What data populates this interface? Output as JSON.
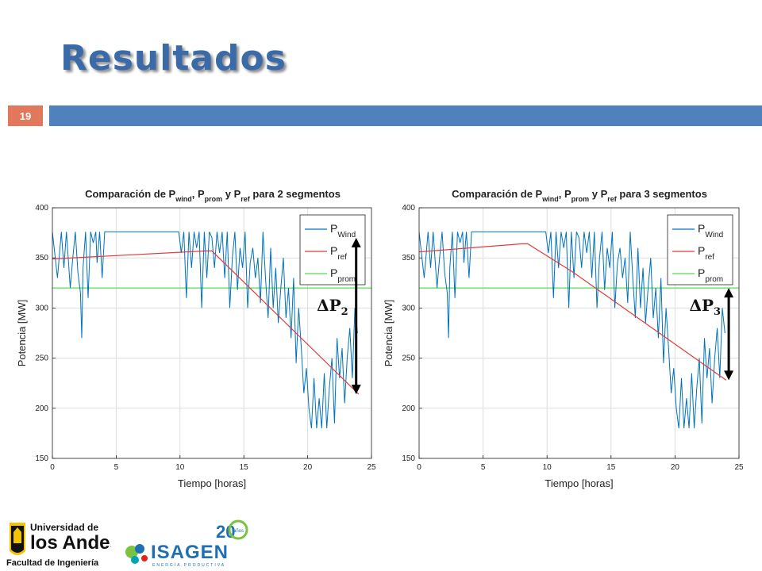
{
  "slide": {
    "title": "Resultados",
    "number": "19",
    "accent": "#4f81bd",
    "number_bg": "#e1785b"
  },
  "chart_data": [
    {
      "type": "line",
      "title": "Comparación de P_wind, P_prom y P_ref para 2 segmentos",
      "title_parts": {
        "a": "Comparación de P",
        "s1": "wind",
        "b": ", P",
        "s2": "prom",
        "c": " y P",
        "s3": "ref",
        "d": " para 2 segmentos"
      },
      "xlabel": "Tiempo [horas]",
      "ylabel": "Potencia [MW]",
      "xlim": [
        0,
        25
      ],
      "ylim": [
        150,
        400
      ],
      "xticks": [
        0,
        5,
        10,
        15,
        20,
        25
      ],
      "yticks": [
        150,
        200,
        250,
        300,
        350,
        400
      ],
      "grid": true,
      "legend_position": "top-right",
      "legend": [
        {
          "base": "P",
          "sub": "Wind",
          "color": "#0072bd"
        },
        {
          "base": "P",
          "sub": "ref",
          "color": "#e03c3c"
        },
        {
          "base": "P",
          "sub": "prom",
          "color": "#55dd55"
        }
      ],
      "annotation": {
        "label": "ΔP",
        "sub": "2",
        "x": 23.8,
        "y_from": 214,
        "y_to": 370
      },
      "series": [
        {
          "name": "P_Wind",
          "color": "#0072bd",
          "x": [
            0,
            0.4,
            0.7,
            0.9,
            1.1,
            1.4,
            1.6,
            1.8,
            2.0,
            2.2,
            2.3,
            2.4,
            2.6,
            2.8,
            3.0,
            3.2,
            3.4,
            3.5,
            3.7,
            3.9,
            4.1,
            4.3,
            4.5,
            4.7,
            4.9,
            5.1,
            5.3,
            5.5,
            5.7,
            5.9,
            6.1,
            6.3,
            6.5,
            6.7,
            6.9,
            7.1,
            7.3,
            7.5,
            7.7,
            7.9,
            8.1,
            8.3,
            8.5,
            8.7,
            8.9,
            9.1,
            9.3,
            9.5,
            9.7,
            9.9,
            10.1,
            10.3,
            10.5,
            10.7,
            10.9,
            11.1,
            11.3,
            11.5,
            11.7,
            11.9,
            12.1,
            12.3,
            12.5,
            12.7,
            12.9,
            13.1,
            13.3,
            13.5,
            13.7,
            13.9,
            14.1,
            14.3,
            14.5,
            14.7,
            14.9,
            15.1,
            15.3,
            15.5,
            15.7,
            15.9,
            16.1,
            16.3,
            16.5,
            16.7,
            16.9,
            17.1,
            17.3,
            17.5,
            17.7,
            17.9,
            18.1,
            18.3,
            18.5,
            18.7,
            18.9,
            19.1,
            19.3,
            19.5,
            19.7,
            19.9,
            20.1,
            20.3,
            20.5,
            20.7,
            20.9,
            21.1,
            21.3,
            21.5,
            21.7,
            21.9,
            22.1,
            22.3,
            22.5,
            22.7,
            22.9,
            23.1,
            23.3,
            23.5,
            23.7,
            23.9
          ],
          "y": [
            376,
            330,
            376,
            340,
            376,
            320,
            350,
            376,
            335,
            315,
            270,
            340,
            376,
            310,
            376,
            365,
            376,
            345,
            376,
            330,
            376,
            376,
            376,
            376,
            376,
            376,
            376,
            376,
            376,
            376,
            376,
            376,
            376,
            376,
            376,
            376,
            376,
            376,
            376,
            376,
            376,
            376,
            376,
            376,
            376,
            376,
            376,
            376,
            376,
            376,
            355,
            376,
            310,
            376,
            340,
            376,
            360,
            376,
            300,
            376,
            330,
            376,
            370,
            340,
            376,
            355,
            376,
            330,
            376,
            300,
            350,
            376,
            318,
            360,
            340,
            376,
            300,
            345,
            360,
            330,
            350,
            305,
            376,
            330,
            290,
            360,
            300,
            340,
            285,
            320,
            350,
            290,
            320,
            270,
            330,
            245,
            300,
            260,
            215,
            240,
            200,
            180,
            230,
            180,
            210,
            180,
            235,
            180,
            220,
            250,
            185,
            270,
            230,
            260,
            205,
            250,
            280,
            230,
            300,
            275
          ],
          "y_comment": ""
        },
        {
          "name": "P_ref",
          "color": "#e03c3c",
          "x": [
            0,
            12,
            12.5,
            24
          ],
          "y": [
            349,
            357,
            357,
            214
          ]
        },
        {
          "name": "P_prom",
          "color": "#55dd55",
          "x": [
            0,
            25
          ],
          "y": [
            320,
            320
          ]
        }
      ]
    },
    {
      "type": "line",
      "title": "Comparación de P_wind, P_prom y P_ref para 3 segmentos",
      "title_parts": {
        "a": "Comparación de P",
        "s1": "wind",
        "b": ", P",
        "s2": "prom",
        "c": " y P",
        "s3": "ref",
        "d": " para 3 segmentos"
      },
      "xlabel": "Tiempo [horas]",
      "ylabel": "Potencia [MW]",
      "xlim": [
        0,
        25
      ],
      "ylim": [
        150,
        400
      ],
      "xticks": [
        0,
        5,
        10,
        15,
        20,
        25
      ],
      "yticks": [
        150,
        200,
        250,
        300,
        350,
        400
      ],
      "grid": true,
      "legend_position": "top-right",
      "legend": [
        {
          "base": "P",
          "sub": "Wind",
          "color": "#0072bd"
        },
        {
          "base": "P",
          "sub": "ref",
          "color": "#e03c3c"
        },
        {
          "base": "P",
          "sub": "prom",
          "color": "#55dd55"
        }
      ],
      "annotation": {
        "label": "ΔP",
        "sub": "3",
        "x": 24.2,
        "y_from": 228,
        "y_to": 320
      },
      "series": [
        {
          "name": "P_Wind",
          "color": "#0072bd",
          "x": [
            0,
            0.4,
            0.7,
            0.9,
            1.1,
            1.4,
            1.6,
            1.8,
            2.0,
            2.2,
            2.3,
            2.4,
            2.6,
            2.8,
            3.0,
            3.2,
            3.4,
            3.5,
            3.7,
            3.9,
            4.1,
            4.3,
            4.5,
            4.7,
            4.9,
            5.1,
            5.3,
            5.5,
            5.7,
            5.9,
            6.1,
            6.3,
            6.5,
            6.7,
            6.9,
            7.1,
            7.3,
            7.5,
            7.7,
            7.9,
            8.1,
            8.3,
            8.5,
            8.7,
            8.9,
            9.1,
            9.3,
            9.5,
            9.7,
            9.9,
            10.1,
            10.3,
            10.5,
            10.7,
            10.9,
            11.1,
            11.3,
            11.5,
            11.7,
            11.9,
            12.1,
            12.3,
            12.5,
            12.7,
            12.9,
            13.1,
            13.3,
            13.5,
            13.7,
            13.9,
            14.1,
            14.3,
            14.5,
            14.7,
            14.9,
            15.1,
            15.3,
            15.5,
            15.7,
            15.9,
            16.1,
            16.3,
            16.5,
            16.7,
            16.9,
            17.1,
            17.3,
            17.5,
            17.7,
            17.9,
            18.1,
            18.3,
            18.5,
            18.7,
            18.9,
            19.1,
            19.3,
            19.5,
            19.7,
            19.9,
            20.1,
            20.3,
            20.5,
            20.7,
            20.9,
            21.1,
            21.3,
            21.5,
            21.7,
            21.9,
            22.1,
            22.3,
            22.5,
            22.7,
            22.9,
            23.1,
            23.3,
            23.5,
            23.7,
            23.9
          ],
          "y": [
            376,
            330,
            376,
            340,
            376,
            320,
            350,
            376,
            335,
            315,
            270,
            340,
            376,
            310,
            376,
            365,
            376,
            345,
            376,
            330,
            376,
            376,
            376,
            376,
            376,
            376,
            376,
            376,
            376,
            376,
            376,
            376,
            376,
            376,
            376,
            376,
            376,
            376,
            376,
            376,
            376,
            376,
            376,
            376,
            376,
            376,
            376,
            376,
            376,
            376,
            355,
            376,
            310,
            376,
            340,
            376,
            360,
            376,
            300,
            376,
            330,
            376,
            370,
            340,
            376,
            355,
            376,
            330,
            376,
            300,
            350,
            376,
            318,
            360,
            340,
            376,
            300,
            345,
            360,
            330,
            350,
            305,
            376,
            330,
            290,
            360,
            300,
            340,
            285,
            320,
            350,
            290,
            320,
            270,
            330,
            245,
            300,
            260,
            215,
            240,
            200,
            180,
            230,
            180,
            210,
            180,
            235,
            180,
            220,
            250,
            185,
            270,
            230,
            260,
            205,
            250,
            280,
            230,
            300,
            275
          ]
        },
        {
          "name": "P_ref",
          "color": "#e03c3c",
          "x": [
            0,
            8,
            8.5,
            12,
            24
          ],
          "y": [
            356,
            364,
            364,
            336,
            228
          ]
        },
        {
          "name": "P_prom",
          "color": "#55dd55",
          "x": [
            0,
            25
          ],
          "y": [
            320,
            320
          ]
        }
      ]
    }
  ],
  "logos": {
    "uniandes": {
      "line1": "Universidad de",
      "line2": "los Andes",
      "line3": "Facultad de Ingeniería"
    },
    "isagen": {
      "name": "ISAGEN",
      "tagline": "ENERGÍA PRODUCTIVA",
      "anniv": "20",
      "anniv_sub": "años"
    }
  }
}
